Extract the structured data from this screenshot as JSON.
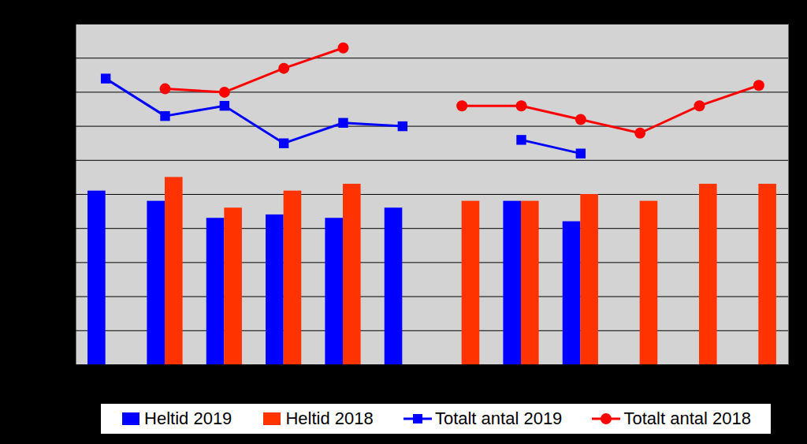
{
  "chart_data": {
    "type": "bar",
    "categories": [
      null,
      null,
      null,
      null,
      null,
      null,
      null,
      null,
      null,
      null,
      null,
      null
    ],
    "series": [
      {
        "name": "Heltid 2019",
        "type": "bar",
        "color": "#0000ff",
        "values": [
          51,
          48,
          43,
          44,
          43,
          46,
          null,
          48,
          42,
          null,
          null,
          null
        ]
      },
      {
        "name": "Heltid 2018",
        "type": "bar",
        "color": "#ff3300",
        "values": [
          null,
          55,
          46,
          51,
          53,
          null,
          48,
          48,
          50,
          48,
          53,
          53
        ]
      },
      {
        "name": "Totalt antal 2019",
        "type": "line",
        "color": "#0000ff",
        "marker": "square",
        "values": [
          84,
          73,
          76,
          65,
          71,
          70,
          null,
          66,
          62,
          null,
          null,
          null
        ]
      },
      {
        "name": "Totalt antal 2018",
        "type": "line",
        "color": "#ff0000",
        "marker": "circle",
        "values": [
          null,
          81,
          80,
          87,
          93,
          null,
          76,
          76,
          72,
          68,
          76,
          82
        ]
      }
    ],
    "ylim": [
      0,
      100
    ],
    "yticks": [
      0,
      10,
      20,
      30,
      40,
      50,
      60,
      70,
      80,
      90,
      100
    ],
    "grid": true,
    "legend": "bottom",
    "tick_labels": false
  }
}
